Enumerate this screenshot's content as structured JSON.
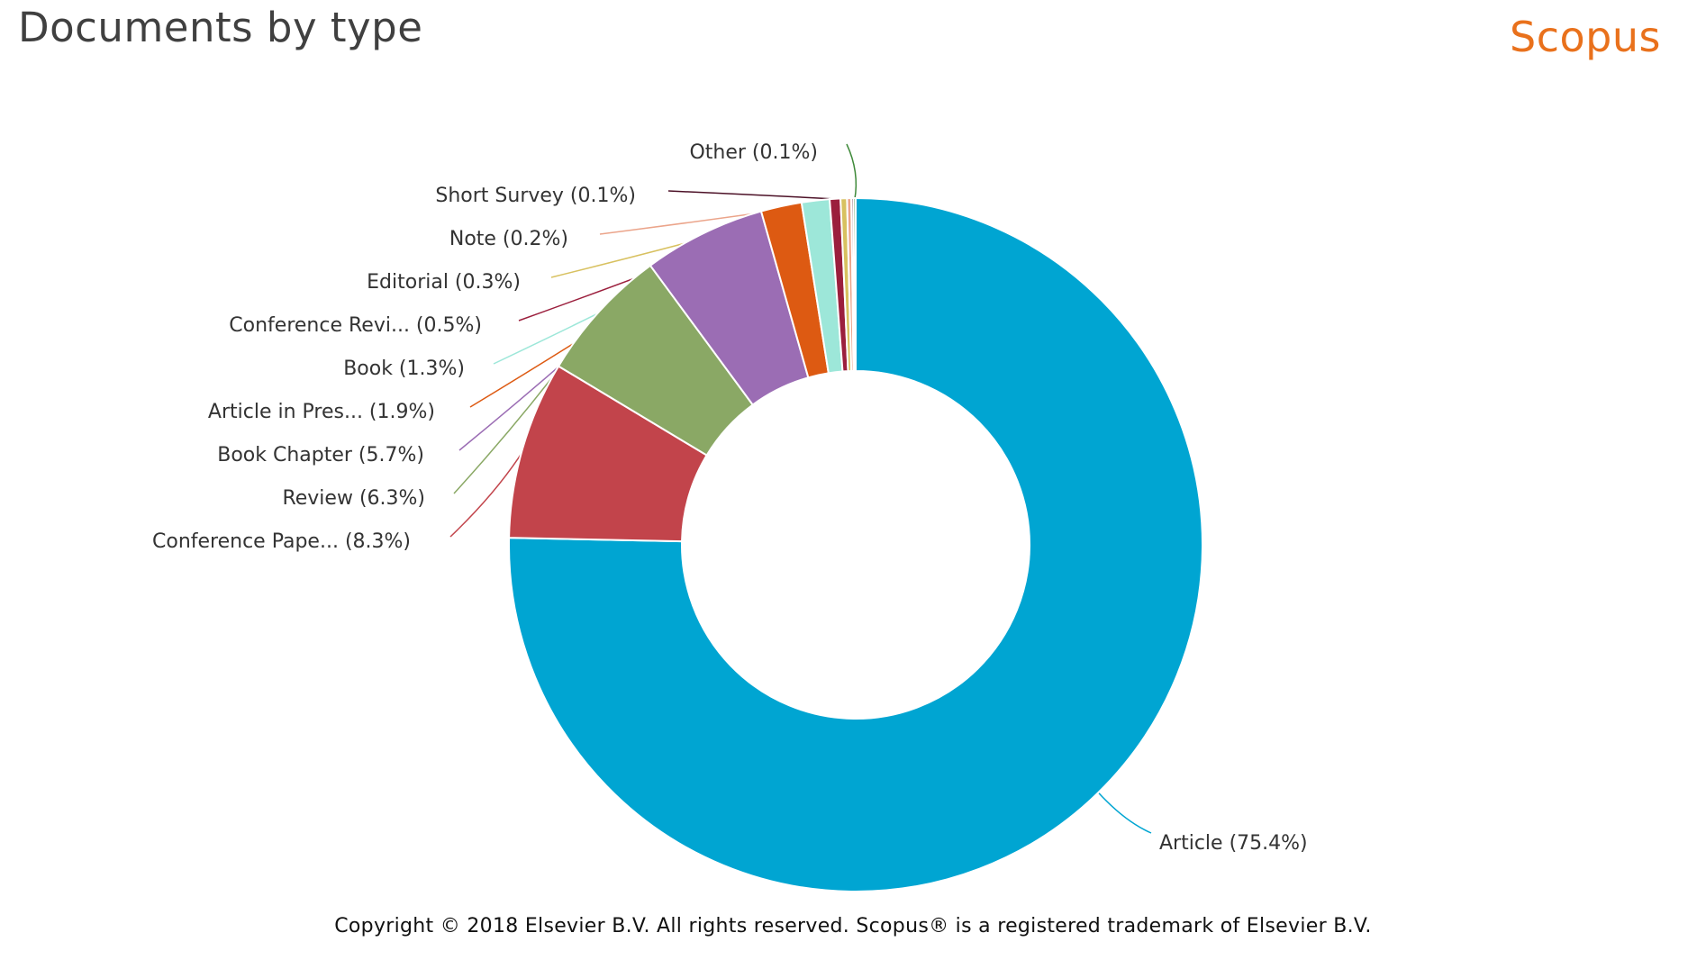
{
  "page": {
    "title": "Documents by type",
    "brand": "Scopus",
    "copyright": "Copyright © 2018 Elsevier B.V. All rights reserved. Scopus® is a registered trademark of Elsevier B.V."
  },
  "chart_data": {
    "type": "pie",
    "variant": "donut",
    "title": "Documents by type",
    "legend": "none",
    "start_angle_deg": 0,
    "direction": "clockwise",
    "slices": [
      {
        "name": "Article",
        "value": 75.4,
        "label": "Article (75.4%)",
        "color": "#00a5d2"
      },
      {
        "name": "Conference Pape...",
        "value": 8.3,
        "label": "Conference Pape... (8.3%)",
        "color": "#c2444b"
      },
      {
        "name": "Review",
        "value": 6.3,
        "label": "Review (6.3%)",
        "color": "#8aa865"
      },
      {
        "name": "Book Chapter",
        "value": 5.7,
        "label": "Book Chapter (5.7%)",
        "color": "#9b6db4"
      },
      {
        "name": "Article in Pres...",
        "value": 1.9,
        "label": "Article in Pres... (1.9%)",
        "color": "#dd5a12"
      },
      {
        "name": "Book",
        "value": 1.3,
        "label": "Book (1.3%)",
        "color": "#9de7d9"
      },
      {
        "name": "Conference Revi...",
        "value": 0.5,
        "label": "Conference Revi... (0.5%)",
        "color": "#9b1f3d"
      },
      {
        "name": "Editorial",
        "value": 0.3,
        "label": "Editorial (0.3%)",
        "color": "#d8c160"
      },
      {
        "name": "Note",
        "value": 0.2,
        "label": "Note (0.2%)",
        "color": "#eba48a"
      },
      {
        "name": "Short Survey",
        "value": 0.1,
        "label": "Short Survey (0.1%)",
        "color": "#4c1127"
      },
      {
        "name": "Other",
        "value": 0.1,
        "label": "Other (0.1%)",
        "color": "#3f8a3a"
      }
    ]
  }
}
